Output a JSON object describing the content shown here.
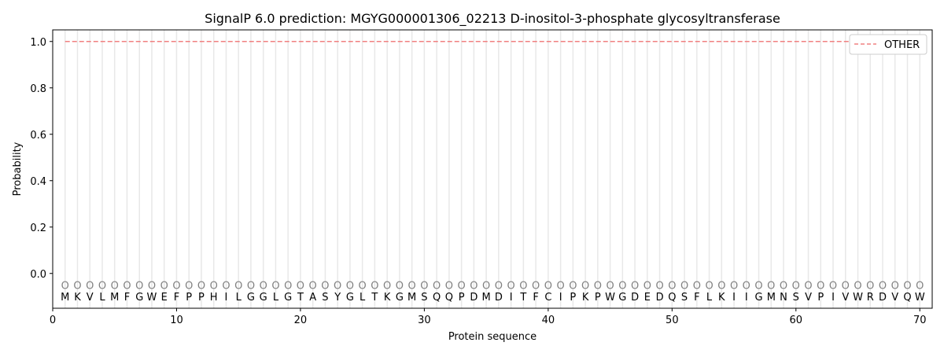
{
  "chart_data": {
    "type": "line",
    "title": "SignalP 6.0 prediction: MGYG000001306_02213 D-inositol-3-phosphate glycosyltransferase",
    "xlabel": "Protein sequence",
    "ylabel": "Probability",
    "xlim": [
      0,
      71
    ],
    "ylim": [
      -0.15,
      1.05
    ],
    "xticks": [
      0,
      10,
      20,
      30,
      40,
      50,
      60,
      70
    ],
    "yticks": [
      0.0,
      0.2,
      0.4,
      0.6,
      0.8,
      1.0
    ],
    "sequence": "MKVLMFGWEFPPHILGGLGTASYGLTKGMSQQPDMDITFCIPKPWGDEDQSFLKIIGMNSVPIVWRDVQW",
    "position_label": "O",
    "series": [
      {
        "name": "OTHER",
        "style": "dashed",
        "color": "#f08080",
        "x_start": 1,
        "x_end": 70,
        "value": 1.0
      }
    ],
    "legend": "top-right"
  }
}
